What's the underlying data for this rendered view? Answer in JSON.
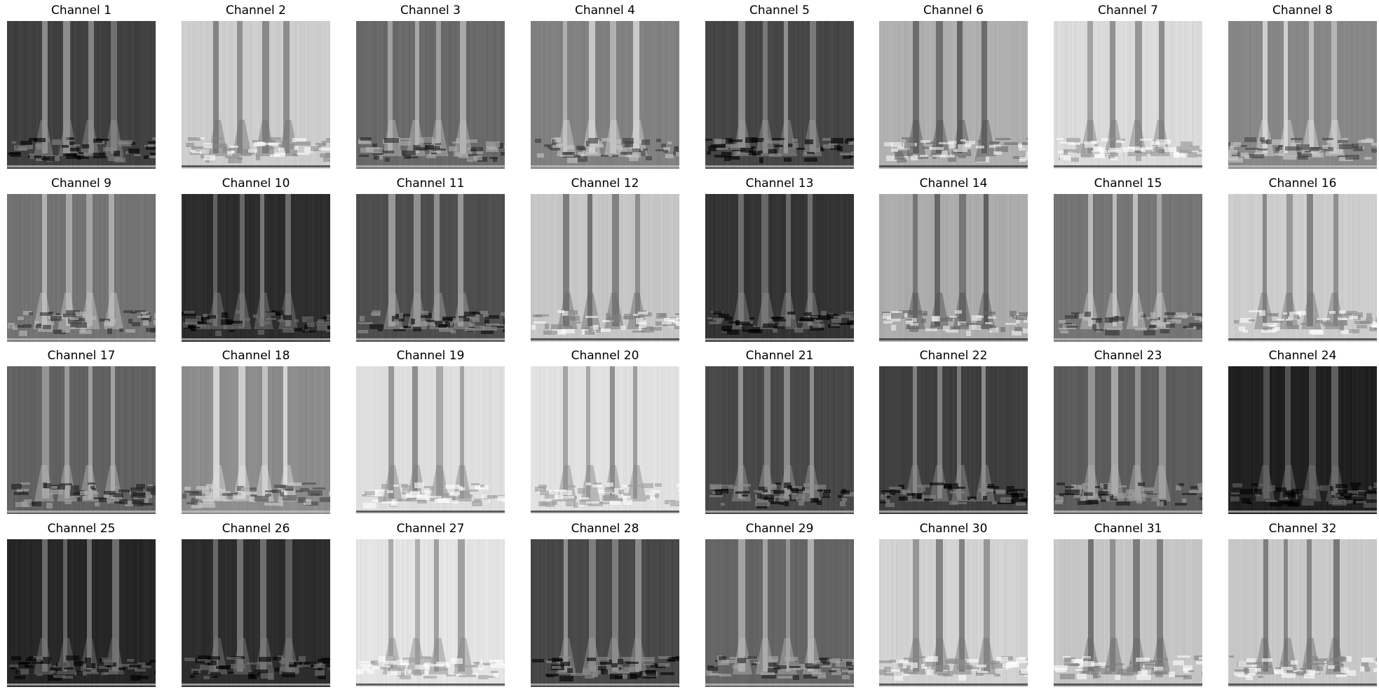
{
  "figure": {
    "panels": [
      {
        "title": "Channel 1",
        "tone": "dark",
        "base": 64
      },
      {
        "title": "Channel 2",
        "tone": "light",
        "base": 205
      },
      {
        "title": "Channel 3",
        "tone": "mid",
        "base": 105
      },
      {
        "title": "Channel 4",
        "tone": "mid",
        "base": 128
      },
      {
        "title": "Channel 5",
        "tone": "dark",
        "base": 70
      },
      {
        "title": "Channel 6",
        "tone": "light",
        "base": 175
      },
      {
        "title": "Channel 7",
        "tone": "light",
        "base": 218
      },
      {
        "title": "Channel 8",
        "tone": "mid",
        "base": 135
      },
      {
        "title": "Channel 9",
        "tone": "mid",
        "base": 115
      },
      {
        "title": "Channel 10",
        "tone": "dark",
        "base": 45
      },
      {
        "title": "Channel 11",
        "tone": "dark",
        "base": 78
      },
      {
        "title": "Channel 12",
        "tone": "light",
        "base": 198
      },
      {
        "title": "Channel 13",
        "tone": "dark",
        "base": 52
      },
      {
        "title": "Channel 14",
        "tone": "light",
        "base": 172
      },
      {
        "title": "Channel 15",
        "tone": "mid",
        "base": 118
      },
      {
        "title": "Channel 16",
        "tone": "light",
        "base": 205
      },
      {
        "title": "Channel 17",
        "tone": "mid",
        "base": 98
      },
      {
        "title": "Channel 18",
        "tone": "mid",
        "base": 140
      },
      {
        "title": "Channel 19",
        "tone": "light",
        "base": 222
      },
      {
        "title": "Channel 20",
        "tone": "light",
        "base": 225
      },
      {
        "title": "Channel 21",
        "tone": "dark",
        "base": 72
      },
      {
        "title": "Channel 22",
        "tone": "dark",
        "base": 62
      },
      {
        "title": "Channel 23",
        "tone": "mid",
        "base": 92
      },
      {
        "title": "Channel 24",
        "tone": "dark",
        "base": 32
      },
      {
        "title": "Channel 25",
        "tone": "dark",
        "base": 38
      },
      {
        "title": "Channel 26",
        "tone": "dark",
        "base": 44
      },
      {
        "title": "Channel 27",
        "tone": "light",
        "base": 228
      },
      {
        "title": "Channel 28",
        "tone": "dark",
        "base": 72
      },
      {
        "title": "Channel 29",
        "tone": "mid",
        "base": 100
      },
      {
        "title": "Channel 30",
        "tone": "light",
        "base": 210
      },
      {
        "title": "Channel 31",
        "tone": "light",
        "base": 198
      },
      {
        "title": "Channel 32",
        "tone": "light",
        "base": 200
      }
    ]
  }
}
